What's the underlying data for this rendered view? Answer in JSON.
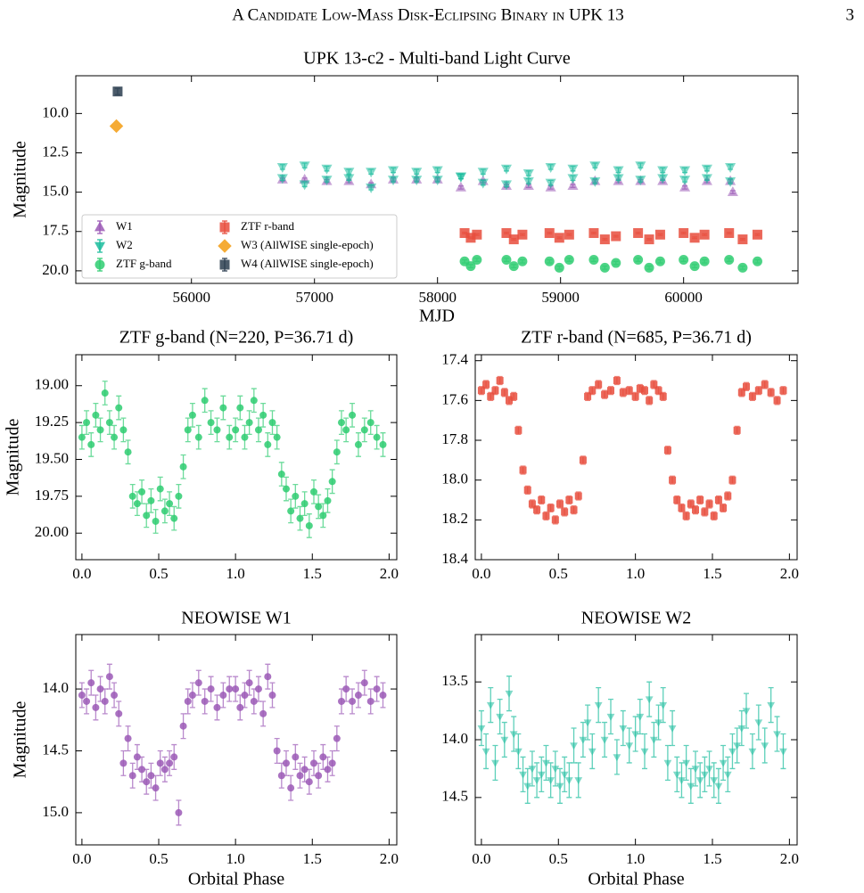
{
  "header": {
    "title": "A Candidate Low-Mass Disk-Eclipsing Binary in UPK 13",
    "page": "3"
  },
  "chart_data": [
    {
      "type": "scatter",
      "title": "UPK 13-c2 - Multi-band Light Curve",
      "x_label": "MJD",
      "y_label": "Magnitude",
      "xlim": [
        55060,
        60930
      ],
      "ylim": [
        20.8,
        7.6
      ],
      "xticks": [
        56000,
        57000,
        58000,
        59000,
        60000
      ],
      "yticks": [
        {
          "value": 10,
          "label": "10.0"
        },
        12.5,
        {
          "value": 15,
          "label": "15.0"
        },
        17.5,
        {
          "value": 20,
          "label": "20.0"
        }
      ],
      "legend": "lower left",
      "legend_columns": 2,
      "series": [
        {
          "name": "W1",
          "color": "#9b59b6",
          "marker": "triangle-up",
          "yerr": 0.1,
          "x": [
            56740,
            56920,
            57100,
            57280,
            57460,
            57640,
            57830,
            58000,
            58190,
            58370,
            58560,
            58740,
            58920,
            59100,
            59280,
            59470,
            59650,
            59830,
            60010,
            60190,
            60380,
            60400
          ],
          "values": [
            14.2,
            14.2,
            14.3,
            14.3,
            14.5,
            14.2,
            14.2,
            14.2,
            14.7,
            14.3,
            14.6,
            14.6,
            14.7,
            14.6,
            14.3,
            14.3,
            14.3,
            14.3,
            14.7,
            14.3,
            14.3,
            15.0
          ]
        },
        {
          "name": "W2",
          "color": "#1abc9c",
          "marker": "triangle-down",
          "yerr": 0.15,
          "x": [
            56740,
            56920,
            57100,
            57280,
            57460,
            57640,
            57830,
            58000,
            58190,
            58370,
            58560,
            58740,
            58920,
            59100,
            59280,
            59470,
            59650,
            59830,
            60010,
            60190,
            60380,
            56740,
            56920,
            57100,
            57280,
            57460,
            57640,
            57830,
            58000,
            58190,
            58370,
            58560,
            58740,
            58920,
            59100,
            59280,
            59470,
            59650,
            59830,
            60010,
            60190,
            60380
          ],
          "values": [
            13.4,
            13.3,
            13.5,
            13.7,
            13.7,
            13.6,
            13.7,
            13.6,
            14.0,
            13.7,
            13.5,
            13.8,
            13.4,
            13.5,
            13.3,
            13.6,
            13.3,
            13.6,
            13.6,
            13.5,
            13.4,
            14.1,
            14.5,
            14.2,
            14.1,
            14.7,
            14.2,
            14.2,
            14.2,
            14.0,
            14.4,
            14.5,
            14.3,
            14.4,
            14.1,
            14.3,
            14.1,
            14.2,
            14.1,
            14.2,
            14.1,
            14.3
          ]
        },
        {
          "name": "ZTF g-band",
          "color": "#2ecc71",
          "marker": "circle",
          "yerr": 0.1,
          "x": [
            58220,
            58270,
            58320,
            58560,
            58620,
            58690,
            58910,
            58990,
            59070,
            59270,
            59360,
            59450,
            59630,
            59720,
            59810,
            60000,
            60090,
            60170,
            60370,
            60480,
            60600
          ],
          "values": [
            19.4,
            19.7,
            19.3,
            19.3,
            19.7,
            19.4,
            19.4,
            19.8,
            19.3,
            19.3,
            19.8,
            19.5,
            19.3,
            19.8,
            19.4,
            19.3,
            19.7,
            19.4,
            19.3,
            19.8,
            19.4
          ]
        },
        {
          "name": "ZTF r-band",
          "color": "#e74c3c",
          "marker": "square",
          "yerr": 0.05,
          "x": [
            58220,
            58270,
            58320,
            58560,
            58620,
            58690,
            58910,
            58990,
            59070,
            59270,
            59360,
            59450,
            59630,
            59720,
            59810,
            60000,
            60090,
            60170,
            60370,
            60480,
            60600
          ],
          "values": [
            17.6,
            17.9,
            17.7,
            17.6,
            18.0,
            17.7,
            17.6,
            17.9,
            17.7,
            17.6,
            18.0,
            17.8,
            17.6,
            18.0,
            17.7,
            17.6,
            17.9,
            17.7,
            17.6,
            18.0,
            17.7
          ]
        },
        {
          "name": "W3 (AllWISE single-epoch)",
          "color": "#f39c12",
          "marker": "diamond",
          "x": [
            55390
          ],
          "values": [
            10.8
          ]
        },
        {
          "name": "W4 (AllWISE single-epoch)",
          "color": "#2c3e50",
          "marker": "square",
          "yerr": 0.2,
          "x": [
            55400
          ],
          "values": [
            8.6
          ]
        }
      ]
    },
    {
      "type": "scatter",
      "title": "ZTF g-band (N=220, P=36.71 d)",
      "y_label": "Magnitude",
      "xlim": [
        -0.04,
        2.05
      ],
      "ylim": [
        20.18,
        18.79
      ],
      "xticks": [
        {
          "value": 0,
          "label": "0.0"
        },
        0.5,
        {
          "value": 1,
          "label": "1.0"
        },
        1.5,
        {
          "value": 2,
          "label": "2.0"
        }
      ],
      "yticks": [
        {
          "value": 19,
          "label": "19.00"
        },
        19.25,
        {
          "value": 19.5,
          "label": "19.50"
        },
        19.75,
        {
          "value": 20,
          "label": "20.00"
        }
      ],
      "series": [
        {
          "color": "#2ecc71",
          "marker": "circle",
          "yerr": 0.08,
          "x": [
            0,
            0.03,
            0.06,
            0.09,
            0.12,
            0.15,
            0.18,
            0.21,
            0.24,
            0.27,
            0.3,
            0.33,
            0.36,
            0.39,
            0.42,
            0.45,
            0.48,
            0.51,
            0.54,
            0.57,
            0.6,
            0.63,
            0.66,
            0.69,
            0.72,
            0.76,
            0.8,
            0.84,
            0.88,
            0.92,
            0.96,
            1,
            1.03,
            1.06,
            1.09,
            1.12,
            1.15,
            1.18,
            1.21,
            1.24,
            1.27,
            1.3,
            1.33,
            1.36,
            1.39,
            1.42,
            1.45,
            1.48,
            1.51,
            1.54,
            1.57,
            1.6,
            1.63,
            1.66,
            1.69,
            1.72,
            1.76,
            1.8,
            1.84,
            1.88,
            1.92,
            1.96
          ],
          "values": [
            19.35,
            19.25,
            19.4,
            19.2,
            19.3,
            19.05,
            19.25,
            19.35,
            19.15,
            19.3,
            19.45,
            19.75,
            19.8,
            19.72,
            19.88,
            19.78,
            19.92,
            19.7,
            19.85,
            19.8,
            19.9,
            19.75,
            19.55,
            19.3,
            19.2,
            19.35,
            19.1,
            19.25,
            19.3,
            19.15,
            19.35,
            19.3,
            19.15,
            19.35,
            19.25,
            19.1,
            19.3,
            19.2,
            19.4,
            19.25,
            19.35,
            19.6,
            19.7,
            19.85,
            19.75,
            19.9,
            19.8,
            19.95,
            19.72,
            19.82,
            19.88,
            19.78,
            19.65,
            19.45,
            19.25,
            19.3,
            19.2,
            19.4,
            19.3,
            19.25,
            19.35,
            19.4
          ]
        }
      ]
    },
    {
      "type": "scatter",
      "title": "ZTF r-band (N=685, P=36.71 d)",
      "xlim": [
        -0.04,
        2.05
      ],
      "ylim": [
        18.4,
        17.37
      ],
      "xticks": [
        {
          "value": 0,
          "label": "0.0"
        },
        0.5,
        {
          "value": 1,
          "label": "1.0"
        },
        1.5,
        {
          "value": 2,
          "label": "2.0"
        }
      ],
      "yticks": [
        17.4,
        17.6,
        17.8,
        {
          "value": 18,
          "label": "18.0"
        },
        18.2,
        18.4
      ],
      "series": [
        {
          "color": "#e74c3c",
          "marker": "square",
          "yerr": 0.02,
          "x": [
            0,
            0.03,
            0.06,
            0.09,
            0.12,
            0.15,
            0.18,
            0.21,
            0.24,
            0.27,
            0.3,
            0.33,
            0.36,
            0.39,
            0.42,
            0.45,
            0.48,
            0.51,
            0.54,
            0.57,
            0.6,
            0.63,
            0.66,
            0.69,
            0.72,
            0.76,
            0.8,
            0.84,
            0.88,
            0.92,
            0.96,
            1,
            1.03,
            1.06,
            1.09,
            1.12,
            1.15,
            1.18,
            1.21,
            1.24,
            1.27,
            1.3,
            1.33,
            1.36,
            1.39,
            1.42,
            1.45,
            1.48,
            1.51,
            1.54,
            1.57,
            1.6,
            1.63,
            1.66,
            1.69,
            1.72,
            1.76,
            1.8,
            1.84,
            1.88,
            1.92,
            1.96
          ],
          "values": [
            17.55,
            17.52,
            17.58,
            17.55,
            17.5,
            17.56,
            17.6,
            17.58,
            17.75,
            17.95,
            18.05,
            18.12,
            18.15,
            18.1,
            18.18,
            18.14,
            18.2,
            18.12,
            18.16,
            18.1,
            18.15,
            18.08,
            17.9,
            17.58,
            17.55,
            17.52,
            17.57,
            17.55,
            17.5,
            17.56,
            17.55,
            17.58,
            17.54,
            17.55,
            17.6,
            17.52,
            17.55,
            17.58,
            17.85,
            18,
            18.1,
            18.14,
            18.18,
            18.12,
            18.15,
            18.1,
            18.16,
            18.12,
            18.18,
            18.1,
            18.14,
            18.08,
            18,
            17.75,
            17.56,
            17.53,
            17.58,
            17.55,
            17.52,
            17.56,
            17.6,
            17.55
          ]
        }
      ]
    },
    {
      "type": "scatter",
      "title": "NEOWISE W1",
      "x_label": "Orbital Phase",
      "y_label": "Magnitude",
      "xlim": [
        -0.04,
        2.05
      ],
      "ylim": [
        15.26,
        13.56
      ],
      "xticks": [
        {
          "value": 0,
          "label": "0.0"
        },
        0.5,
        {
          "value": 1,
          "label": "1.0"
        },
        1.5,
        {
          "value": 2,
          "label": "2.0"
        }
      ],
      "yticks": [
        {
          "value": 14,
          "label": "14.0"
        },
        14.5,
        {
          "value": 15,
          "label": "15.0"
        }
      ],
      "series": [
        {
          "color": "#9b59b6",
          "marker": "circle",
          "yerr": 0.1,
          "x": [
            0,
            0.03,
            0.06,
            0.09,
            0.12,
            0.15,
            0.18,
            0.21,
            0.24,
            0.27,
            0.3,
            0.33,
            0.36,
            0.39,
            0.42,
            0.45,
            0.48,
            0.51,
            0.54,
            0.57,
            0.6,
            0.63,
            0.66,
            0.69,
            0.72,
            0.76,
            0.8,
            0.84,
            0.88,
            0.92,
            0.96,
            1,
            1.03,
            1.06,
            1.09,
            1.12,
            1.15,
            1.18,
            1.21,
            1.24,
            1.27,
            1.3,
            1.33,
            1.36,
            1.39,
            1.42,
            1.45,
            1.48,
            1.51,
            1.54,
            1.57,
            1.6,
            1.63,
            1.66,
            1.69,
            1.72,
            1.76,
            1.8,
            1.84,
            1.88,
            1.92,
            1.96
          ],
          "values": [
            14.05,
            14.1,
            13.95,
            14.15,
            14,
            14.1,
            13.9,
            14.05,
            14.2,
            14.6,
            14.4,
            14.7,
            14.55,
            14.65,
            14.75,
            14.7,
            14.8,
            14.6,
            14.65,
            14.6,
            14.55,
            15,
            14.3,
            14.1,
            14.05,
            13.95,
            14.1,
            14,
            14.15,
            14.05,
            14,
            14,
            14.15,
            14.05,
            13.95,
            14.1,
            14,
            14.2,
            13.9,
            14.05,
            14.5,
            14.7,
            14.6,
            14.8,
            14.55,
            14.7,
            14.65,
            14.75,
            14.6,
            14.7,
            14.55,
            14.65,
            14.6,
            14.4,
            14.1,
            14,
            14.1,
            14.05,
            13.95,
            14.1,
            14,
            14.05
          ]
        }
      ]
    },
    {
      "type": "scatter",
      "title": "NEOWISE W2",
      "x_label": "Orbital Phase",
      "xlim": [
        -0.04,
        2.05
      ],
      "ylim": [
        14.91,
        13.09
      ],
      "xticks": [
        {
          "value": 0,
          "label": "0.0"
        },
        0.5,
        {
          "value": 1,
          "label": "1.0"
        },
        1.5,
        {
          "value": 2,
          "label": "2.0"
        }
      ],
      "yticks": [
        13.5,
        {
          "value": 14,
          "label": "14.0"
        },
        14.5
      ],
      "series": [
        {
          "color": "#1abc9c",
          "marker": "triangle-down",
          "yerr": 0.15,
          "x": [
            0,
            0.03,
            0.06,
            0.09,
            0.12,
            0.15,
            0.18,
            0.21,
            0.24,
            0.27,
            0.3,
            0.33,
            0.36,
            0.39,
            0.42,
            0.45,
            0.48,
            0.51,
            0.54,
            0.57,
            0.6,
            0.63,
            0.66,
            0.69,
            0.72,
            0.76,
            0.8,
            0.84,
            0.88,
            0.92,
            0.96,
            1,
            1.03,
            1.06,
            1.09,
            1.12,
            1.15,
            1.18,
            1.21,
            1.24,
            1.27,
            1.3,
            1.33,
            1.36,
            1.39,
            1.42,
            1.45,
            1.48,
            1.51,
            1.54,
            1.57,
            1.6,
            1.63,
            1.66,
            1.69,
            1.72,
            1.76,
            1.8,
            1.84,
            1.88,
            1.92,
            1.96
          ],
          "values": [
            13.9,
            14.1,
            13.7,
            14.2,
            13.8,
            14,
            13.6,
            13.95,
            14.1,
            14.3,
            14.4,
            14.25,
            14.35,
            14.3,
            14.2,
            14.35,
            14.25,
            14.4,
            14.3,
            14.35,
            14.05,
            14.35,
            14,
            13.85,
            14.1,
            13.7,
            14,
            13.8,
            14.15,
            13.9,
            14.05,
            13.95,
            13.8,
            14.1,
            13.65,
            14,
            13.85,
            13.7,
            14.2,
            13.9,
            14.3,
            14.35,
            14.2,
            14.4,
            14.25,
            14.35,
            14.3,
            14.25,
            14.35,
            14.4,
            14.2,
            14.3,
            14.1,
            14.05,
            13.9,
            13.75,
            14.1,
            13.85,
            14.05,
            13.7,
            13.95,
            14.1
          ]
        }
      ]
    }
  ]
}
